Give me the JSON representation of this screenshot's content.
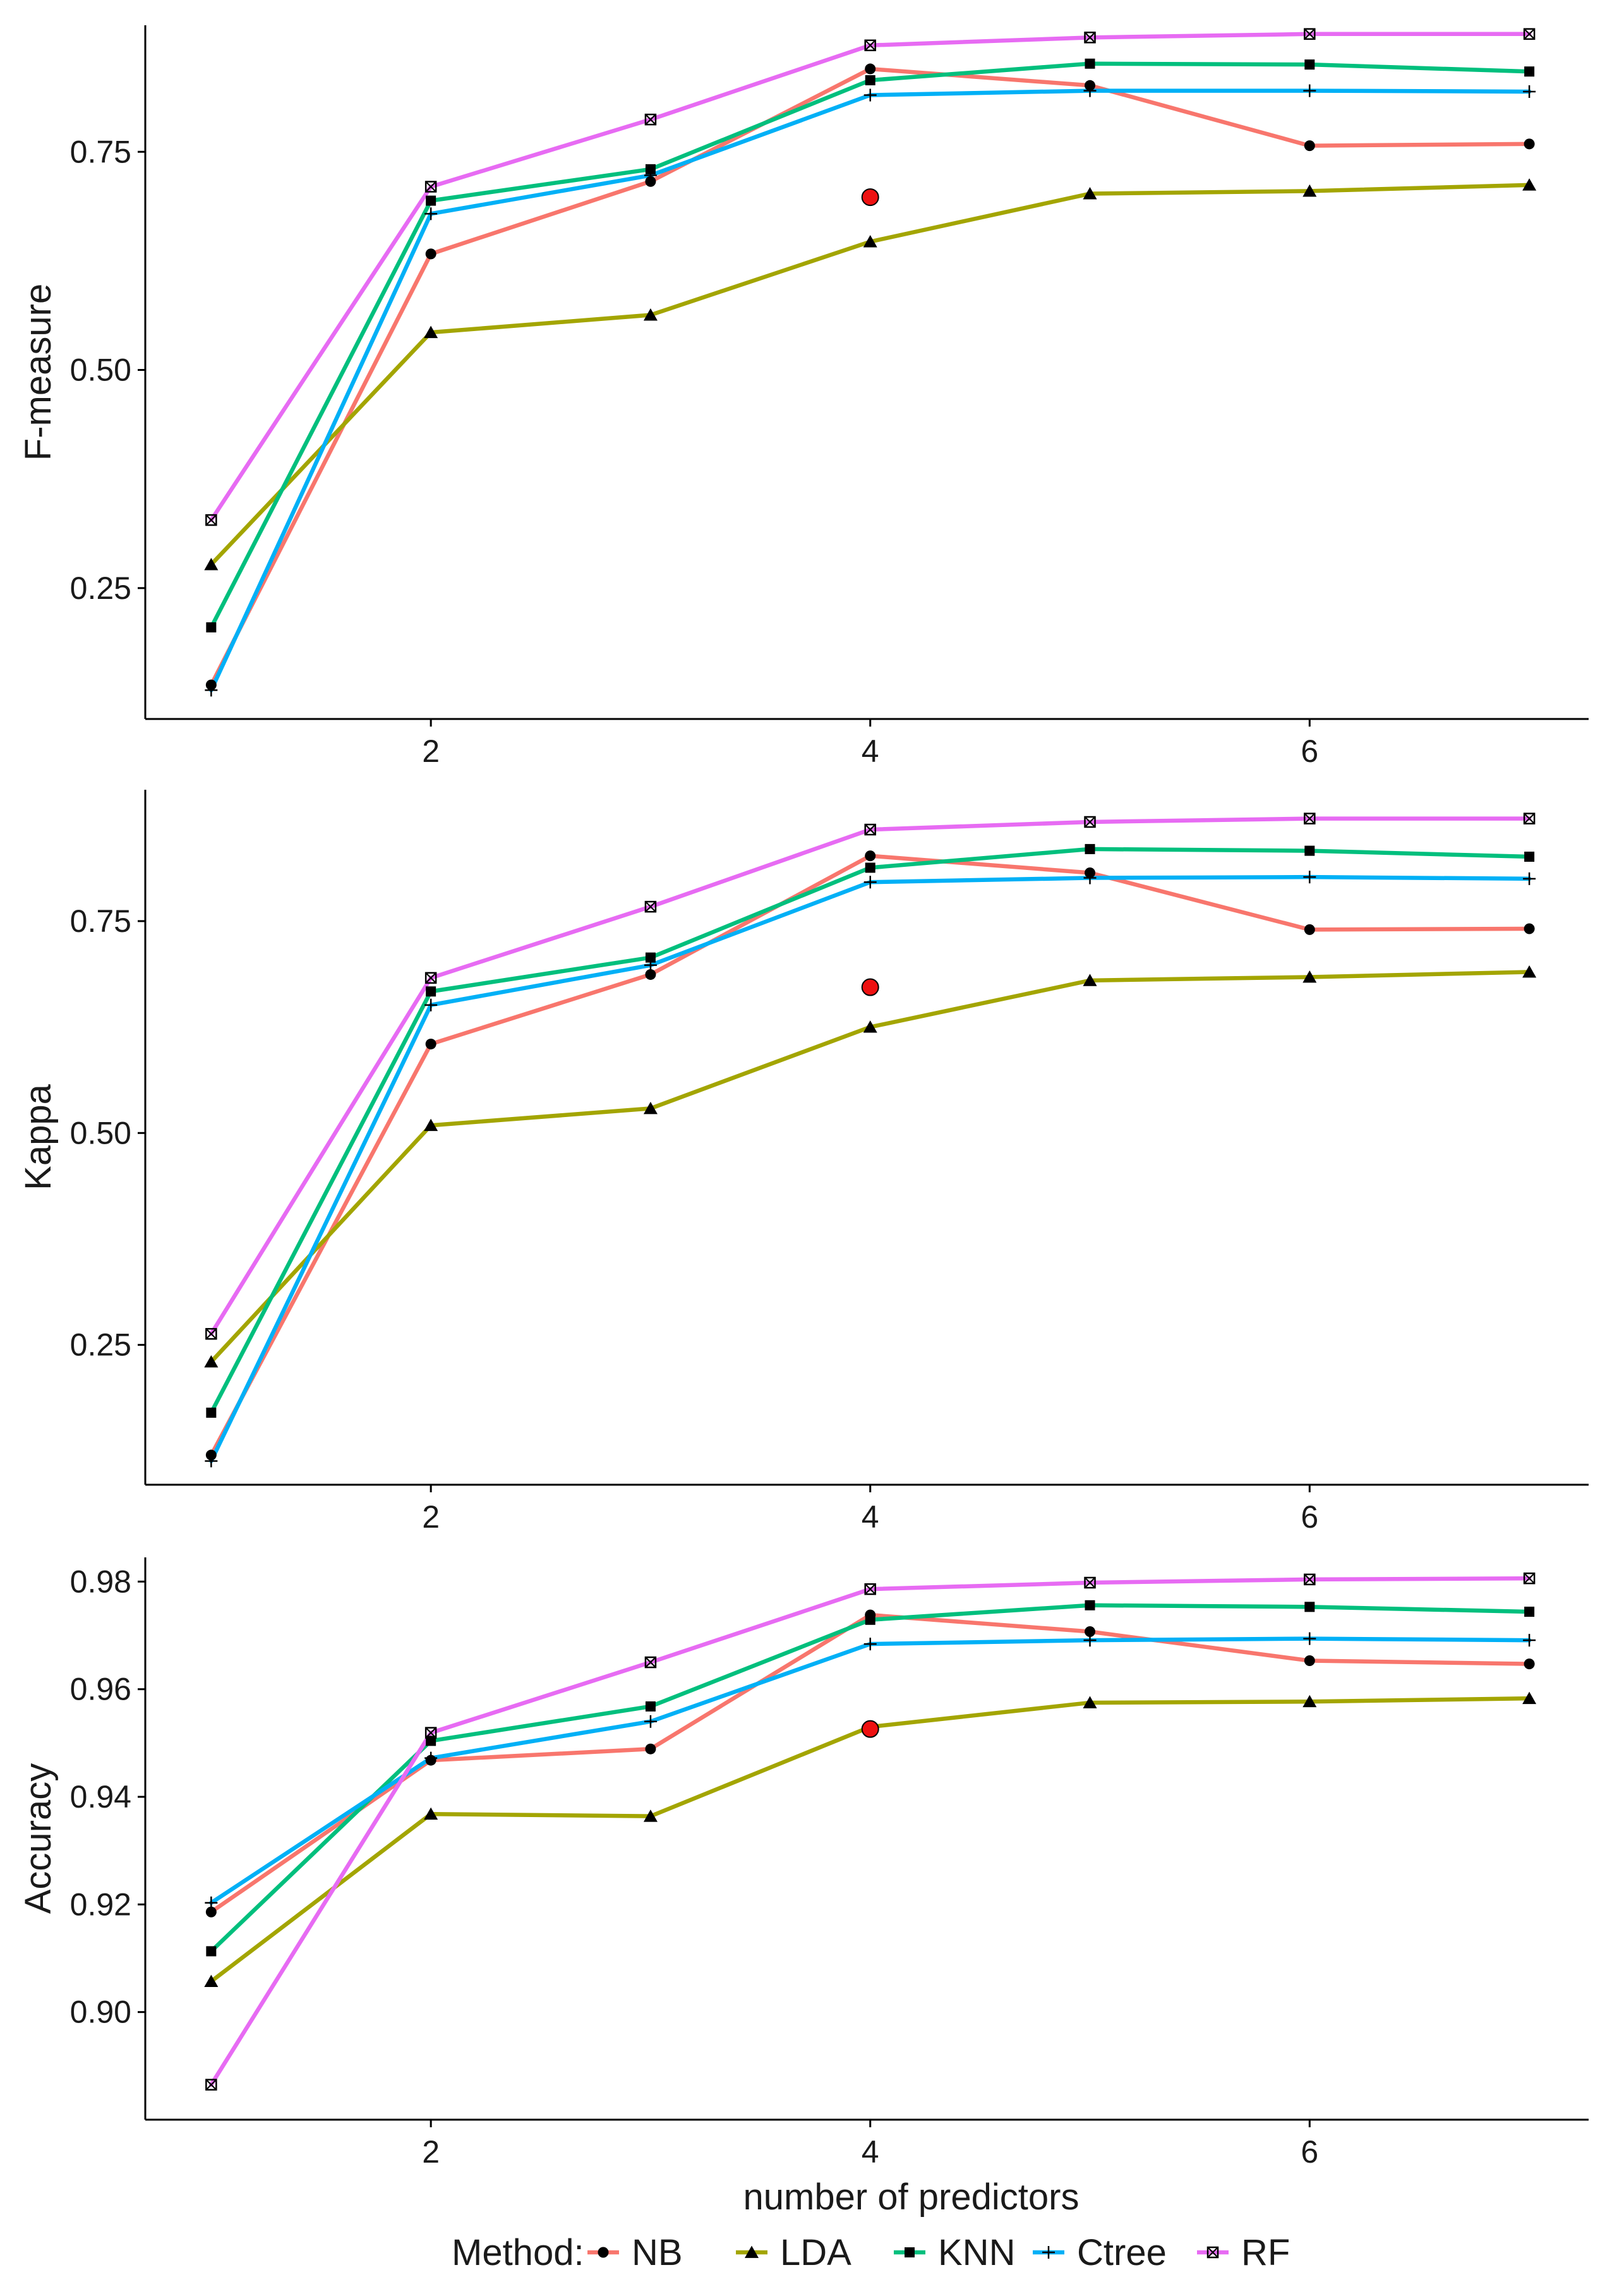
{
  "chart_data": [
    {
      "type": "line",
      "id": "fmeasure",
      "ylabel": "F-measure",
      "xlabel": "",
      "x": [
        1,
        2,
        3,
        4,
        5,
        6,
        7
      ],
      "xticks": [
        2,
        4,
        6
      ],
      "xtick_labels": [
        "2",
        "4",
        "6"
      ],
      "xlim": [
        0.7,
        7.27
      ],
      "ylim": [
        0.1,
        0.895
      ],
      "yticks": [
        0.25,
        0.5,
        0.75
      ],
      "ytick_labels": [
        "0.25",
        "0.50",
        "0.75"
      ],
      "series": [
        {
          "name": "NB",
          "values": [
            0.139,
            0.633,
            0.716,
            0.845,
            0.826,
            0.757,
            0.759
          ]
        },
        {
          "name": "LDA",
          "values": [
            0.277,
            0.543,
            0.563,
            0.647,
            0.702,
            0.705,
            0.712
          ]
        },
        {
          "name": "KNN",
          "values": [
            0.205,
            0.694,
            0.73,
            0.832,
            0.851,
            0.85,
            0.842
          ]
        },
        {
          "name": "Ctree",
          "values": [
            0.133,
            0.679,
            0.723,
            0.815,
            0.82,
            0.82,
            0.819
          ]
        },
        {
          "name": "RF",
          "values": [
            0.328,
            0.71,
            0.787,
            0.872,
            0.881,
            0.885,
            0.885
          ]
        }
      ],
      "highlight": {
        "x": 4,
        "y": 0.698
      }
    },
    {
      "type": "line",
      "id": "kappa",
      "ylabel": "Kappa",
      "xlabel": "",
      "x": [
        1,
        2,
        3,
        4,
        5,
        6,
        7
      ],
      "xticks": [
        2,
        4,
        6
      ],
      "xtick_labels": [
        "2",
        "4",
        "6"
      ],
      "xlim": [
        0.7,
        7.27
      ],
      "ylim": [
        0.085,
        0.905
      ],
      "yticks": [
        0.25,
        0.5,
        0.75
      ],
      "ytick_labels": [
        "0.25",
        "0.50",
        "0.75"
      ],
      "series": [
        {
          "name": "NB",
          "values": [
            0.12,
            0.605,
            0.687,
            0.827,
            0.807,
            0.74,
            0.741
          ]
        },
        {
          "name": "LDA",
          "values": [
            0.23,
            0.509,
            0.529,
            0.625,
            0.68,
            0.684,
            0.69
          ]
        },
        {
          "name": "KNN",
          "values": [
            0.17,
            0.667,
            0.707,
            0.813,
            0.835,
            0.833,
            0.826
          ]
        },
        {
          "name": "Ctree",
          "values": [
            0.113,
            0.651,
            0.698,
            0.796,
            0.801,
            0.802,
            0.8
          ]
        },
        {
          "name": "RF",
          "values": [
            0.263,
            0.683,
            0.767,
            0.858,
            0.867,
            0.871,
            0.871
          ]
        }
      ],
      "highlight": {
        "x": 4,
        "y": 0.672
      }
    },
    {
      "type": "line",
      "id": "accuracy",
      "ylabel": "Accuracy",
      "xlabel": "number of predictors",
      "x": [
        1,
        2,
        3,
        4,
        5,
        6,
        7
      ],
      "xticks": [
        2,
        4,
        6
      ],
      "xtick_labels": [
        "2",
        "4",
        "6"
      ],
      "xlim": [
        0.7,
        7.27
      ],
      "ylim": [
        0.88,
        0.9845
      ],
      "yticks": [
        0.9,
        0.92,
        0.94,
        0.96,
        0.98
      ],
      "ytick_labels": [
        "0.90",
        "0.92",
        "0.94",
        "0.96",
        "0.98"
      ],
      "series": [
        {
          "name": "NB",
          "values": [
            0.9186,
            0.9468,
            0.9489,
            0.9738,
            0.9707,
            0.9653,
            0.9647
          ]
        },
        {
          "name": "LDA",
          "values": [
            0.9057,
            0.9368,
            0.9364,
            0.953,
            0.9575,
            0.9577,
            0.9583
          ]
        },
        {
          "name": "KNN",
          "values": [
            0.9113,
            0.9504,
            0.9568,
            0.9729,
            0.9756,
            0.9753,
            0.9744
          ]
        },
        {
          "name": "Ctree",
          "values": [
            0.9203,
            0.9472,
            0.954,
            0.9684,
            0.9691,
            0.9694,
            0.9691
          ]
        },
        {
          "name": "RF",
          "values": [
            0.8865,
            0.9519,
            0.965,
            0.9786,
            0.9798,
            0.9804,
            0.9806
          ]
        }
      ],
      "highlight": {
        "x": 4,
        "y": 0.9526
      }
    }
  ],
  "legend": {
    "title": "Method:",
    "items": [
      {
        "name": "NB",
        "color": "#f8766d",
        "shape": "circle"
      },
      {
        "name": "LDA",
        "color": "#a3a500",
        "shape": "triangle"
      },
      {
        "name": "KNN",
        "color": "#00bf7d",
        "shape": "square"
      },
      {
        "name": "Ctree",
        "color": "#00b0f6",
        "shape": "plus"
      },
      {
        "name": "RF",
        "color": "#e76bf3",
        "shape": "boxcross"
      }
    ]
  },
  "colors": {
    "NB": "#f8766d",
    "LDA": "#a3a500",
    "KNN": "#00bf7d",
    "Ctree": "#00b0f6",
    "RF": "#e76bf3",
    "highlight": "#ee1111",
    "axis": "#000000"
  }
}
